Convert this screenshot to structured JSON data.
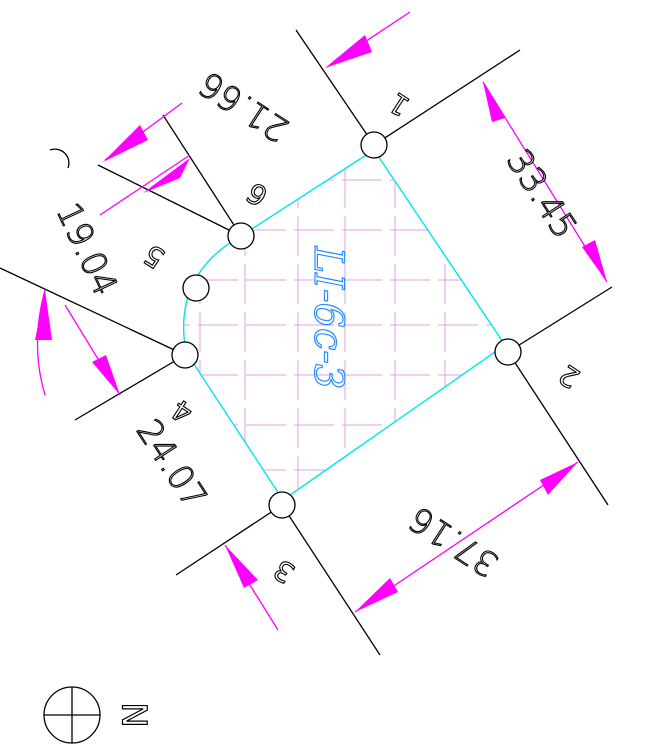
{
  "parcel": {
    "label": "LI-6c-3"
  },
  "points": [
    "1",
    "2",
    "3",
    "4",
    "5",
    "6"
  ],
  "dimensions": [
    "21.66",
    "33.45",
    "19.04",
    "24.07",
    "37.16"
  ],
  "north": "N"
}
